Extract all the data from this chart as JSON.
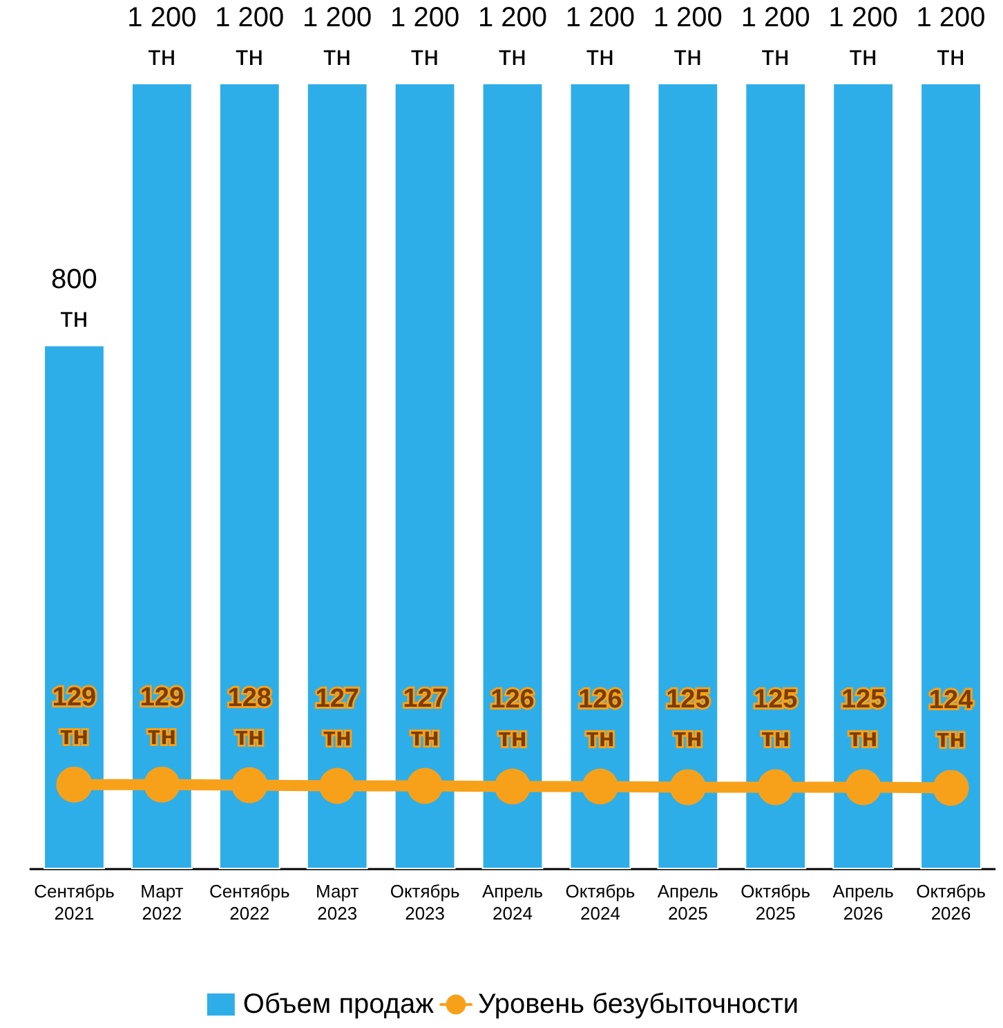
{
  "chart_data": {
    "type": "bar",
    "categories": [
      "Сентябрь\n2021",
      "Март\n2022",
      "Сентябрь\n2022",
      "Март\n2023",
      "Октябрь\n2023",
      "Апрель\n2024",
      "Октябрь\n2024",
      "Апрель\n2025",
      "Октябрь\n2025",
      "Апрель\n2026",
      "Октябрь\n2026"
    ],
    "series": [
      {
        "name": "Объем продаж",
        "color": "#2eaee8",
        "values": [
          800,
          1200,
          1200,
          1200,
          1200,
          1200,
          1200,
          1200,
          1200,
          1200,
          1200
        ],
        "value_labels": [
          "800\nтн",
          "1 200\nтн",
          "1 200\nтн",
          "1 200\nтн",
          "1 200\nтн",
          "1 200\nтн",
          "1 200\nтн",
          "1 200\nтн",
          "1 200\nтн",
          "1 200\nтн",
          "1 200\nтн"
        ]
      },
      {
        "name": "Уровень безубыточности",
        "type": "line",
        "color": "#f7a11a",
        "values": [
          129,
          129,
          128,
          127,
          127,
          126,
          126,
          125,
          125,
          125,
          124
        ],
        "value_labels": [
          "129\nтн",
          "129\nтн",
          "128\nтн",
          "127\nтн",
          "127\nтн",
          "126\nтн",
          "126\nтн",
          "125\nтн",
          "125\nтн",
          "125\nтн",
          "124\nтн"
        ]
      }
    ],
    "legend": "bottom",
    "marker": "circle"
  }
}
